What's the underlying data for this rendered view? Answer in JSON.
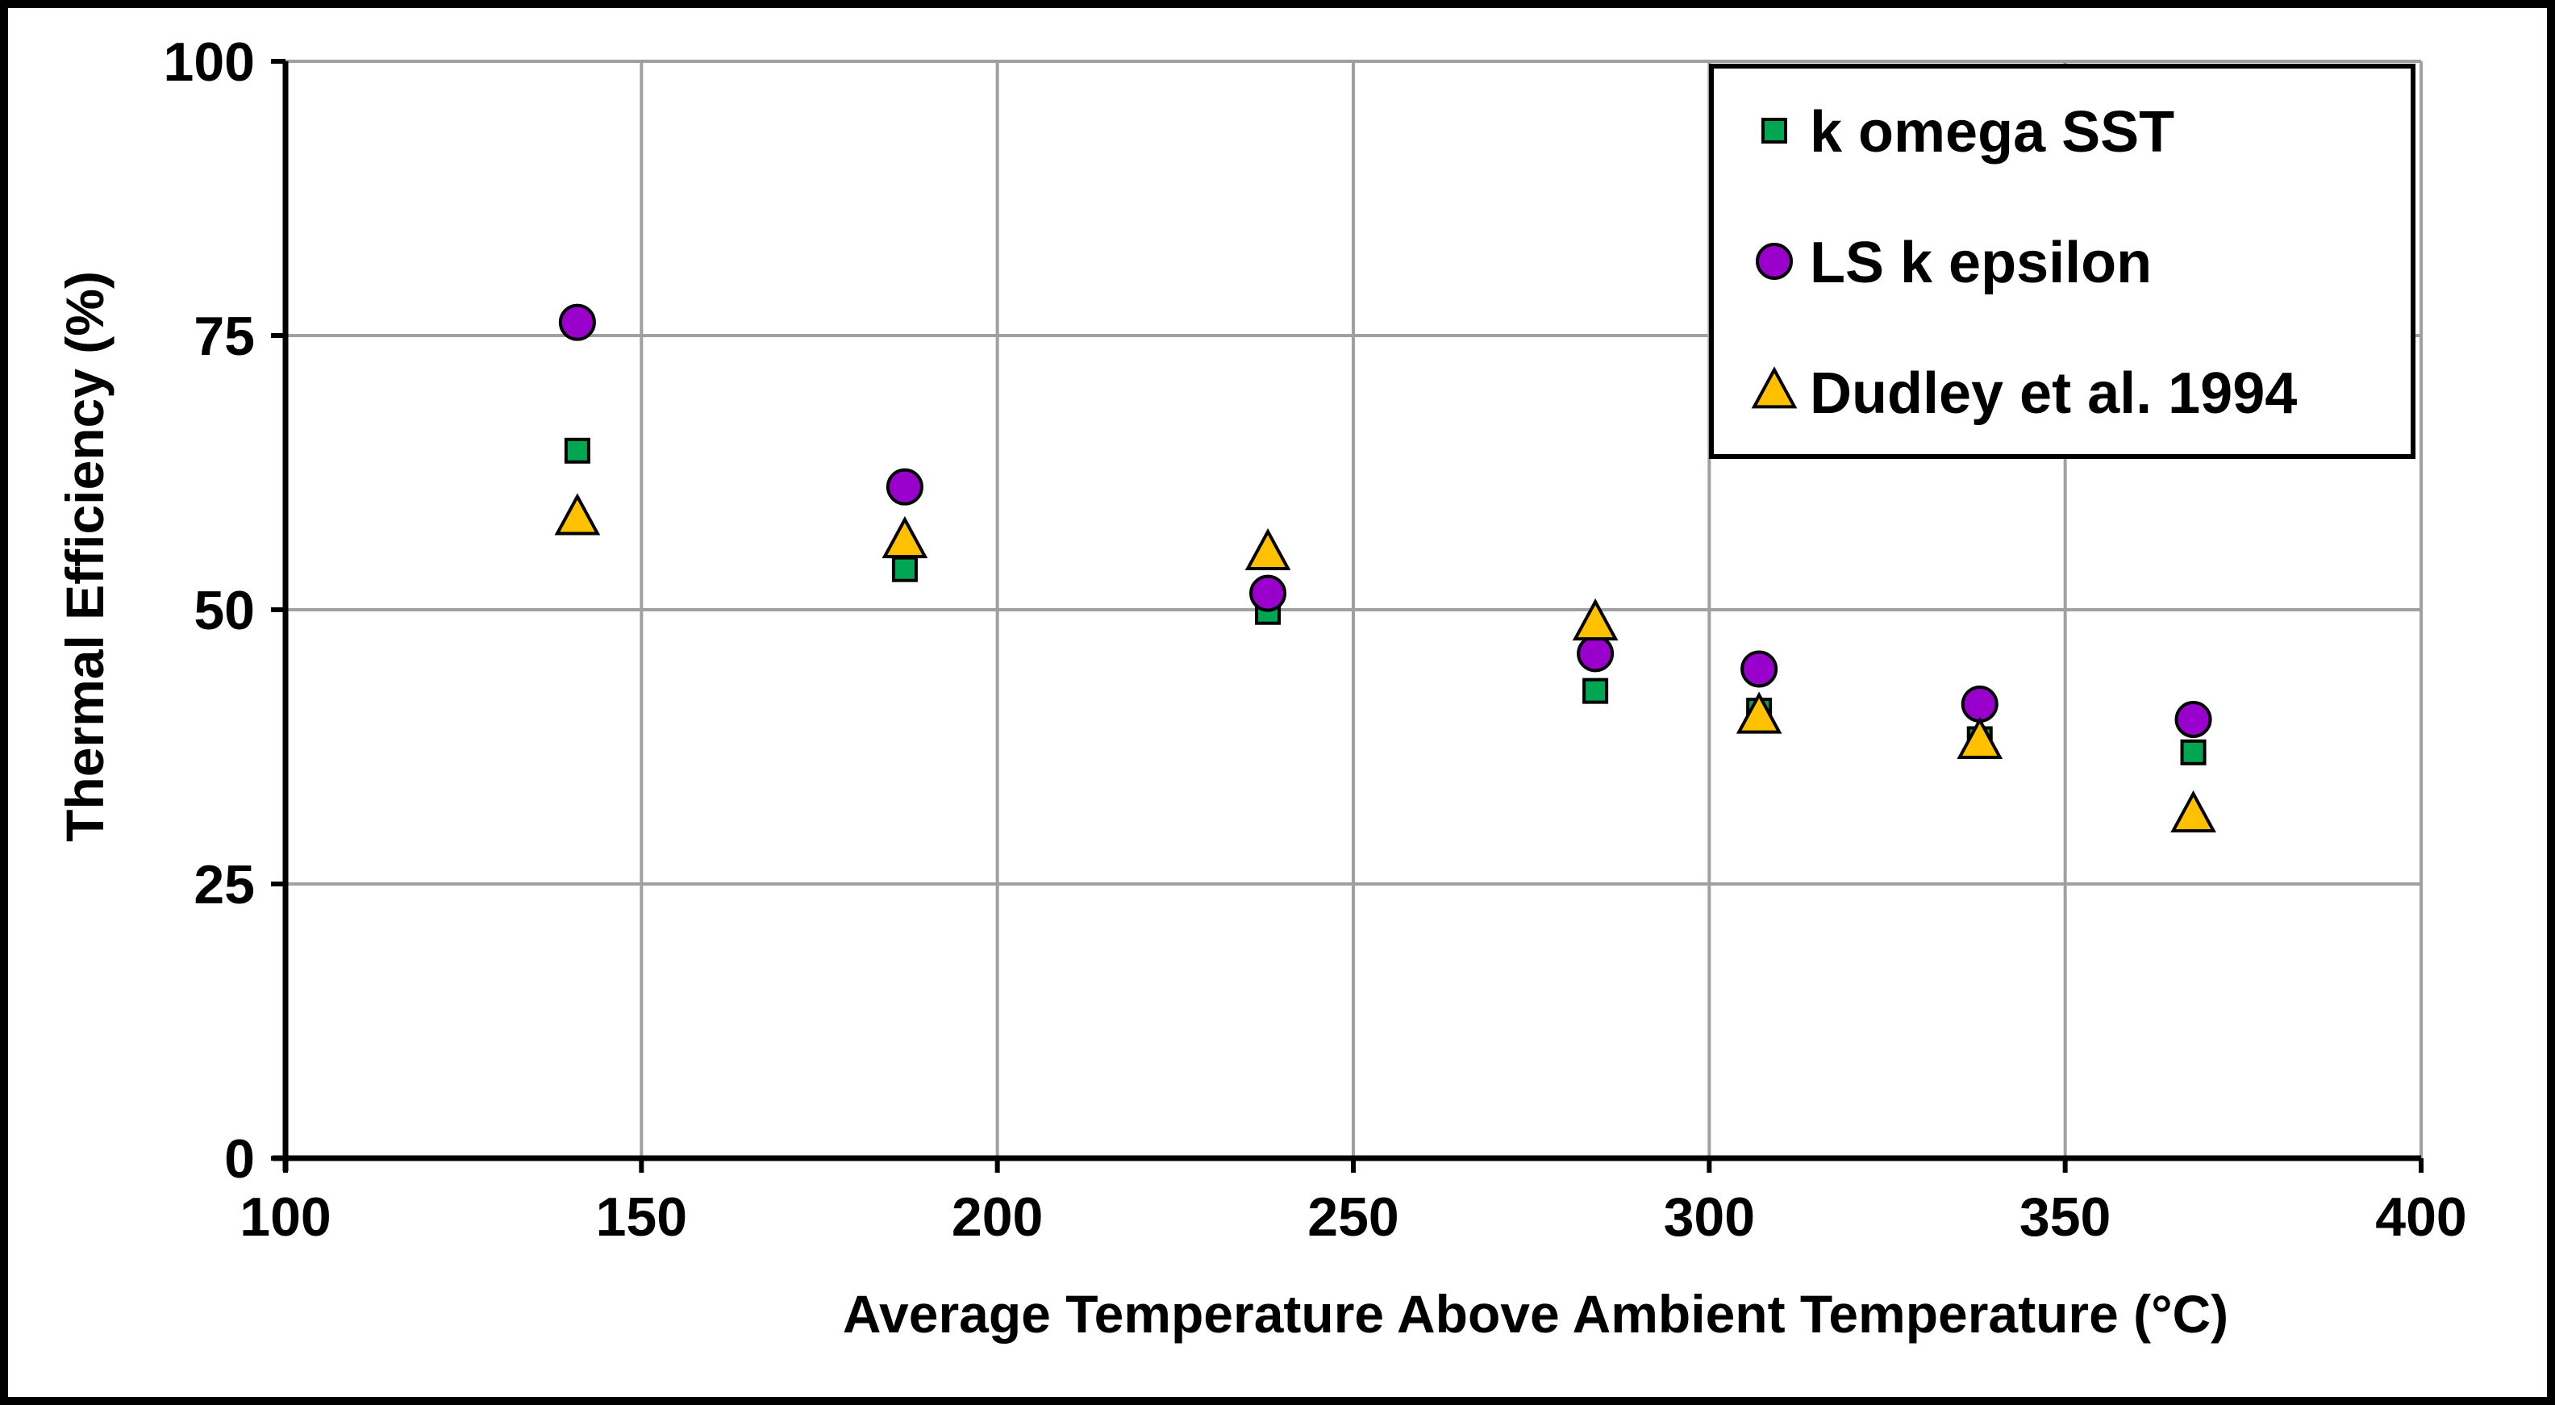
{
  "chart_data": {
    "type": "scatter",
    "title": "",
    "xlabel": "Average Temperature Above Ambient Temperature (°C)",
    "ylabel": "Thermal Efficiency (%)",
    "xlim": [
      100,
      400
    ],
    "ylim": [
      0,
      100
    ],
    "x_ticks": [
      100,
      150,
      200,
      250,
      300,
      350,
      400
    ],
    "y_ticks": [
      0,
      25,
      50,
      75,
      100
    ],
    "grid": true,
    "legend_position": "top-right",
    "series": [
      {
        "name": "k omega SST",
        "marker": "square",
        "color": "#00a651",
        "x": [
          141,
          187,
          238,
          284,
          307,
          338,
          368
        ],
        "y": [
          64.5,
          53.7,
          49.8,
          42.6,
          40.8,
          38.2,
          37.0
        ]
      },
      {
        "name": "LS k epsilon",
        "marker": "circle",
        "color": "#9900cc",
        "x": [
          141,
          187,
          238,
          284,
          307,
          338,
          368
        ],
        "y": [
          76.2,
          61.2,
          51.5,
          46.0,
          44.6,
          41.4,
          40.0
        ]
      },
      {
        "name": "Dudley et al. 1994",
        "marker": "triangle",
        "color": "#ffc000",
        "x": [
          141,
          187,
          238,
          284,
          307,
          338,
          368
        ],
        "y": [
          58.3,
          56.2,
          55.1,
          48.7,
          40.2,
          37.9,
          31.2
        ]
      }
    ]
  }
}
